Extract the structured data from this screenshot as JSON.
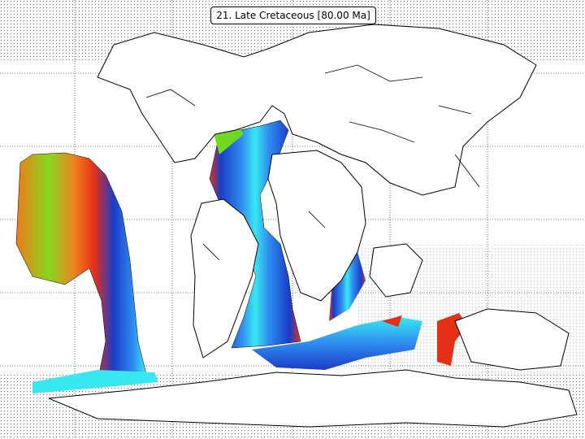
{
  "map": {
    "title": "21. Late Cretaceous [80.00 Ma]"
  }
}
